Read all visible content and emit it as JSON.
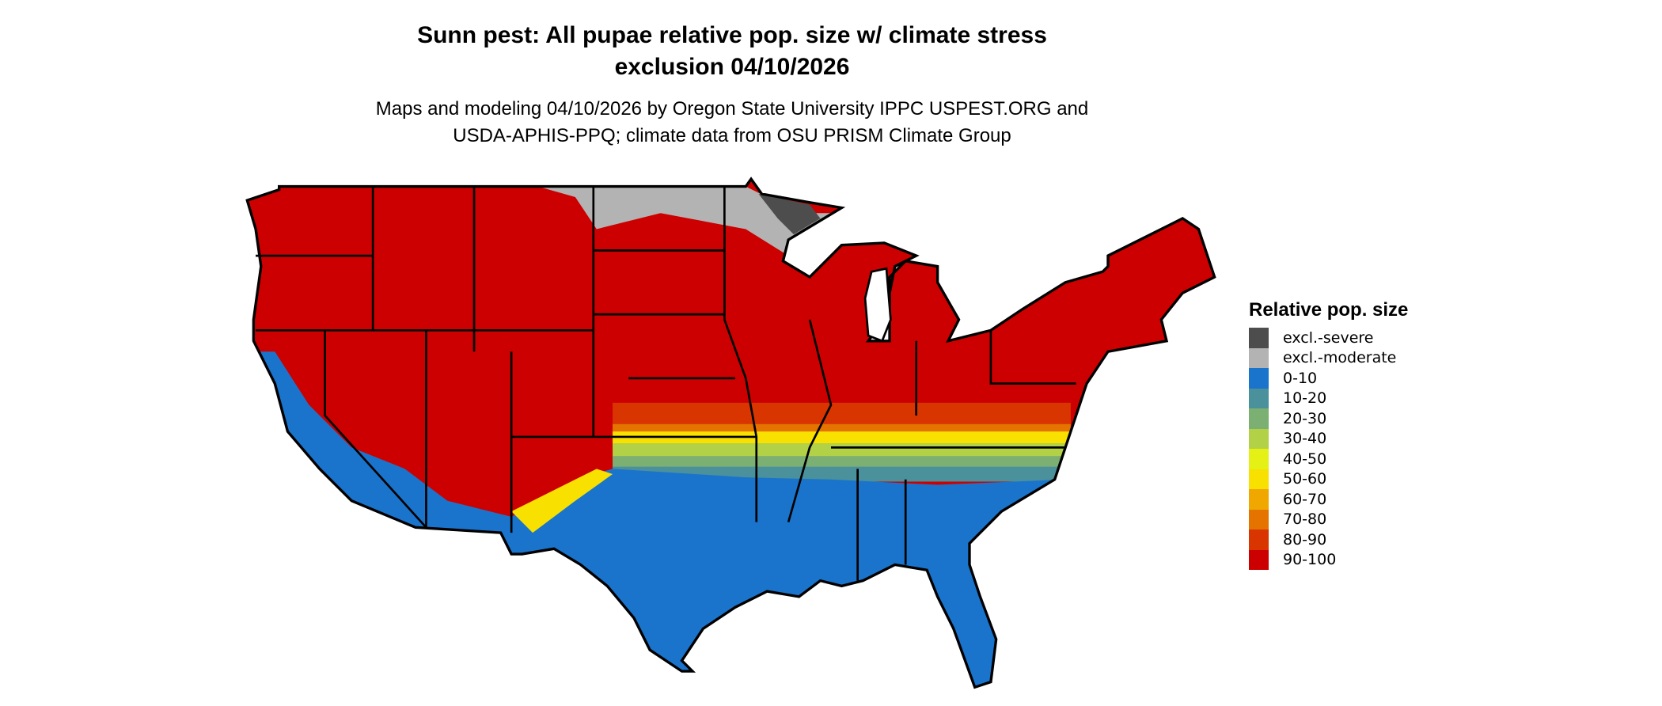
{
  "title": {
    "line1": "Sunn pest: All pupae relative pop. size w/ climate stress",
    "line2": "exclusion 04/10/2026"
  },
  "subtitle": {
    "line1": "Maps and modeling 04/10/2026 by Oregon State University IPPC USPEST.ORG and",
    "line2": "USDA-APHIS-PPQ; climate data from OSU PRISM Climate Group"
  },
  "legend": {
    "title": "Relative pop. size",
    "items": [
      {
        "label": "excl.-severe",
        "color": "#4d4d4d"
      },
      {
        "label": "excl.-moderate",
        "color": "#b3b3b3"
      },
      {
        "label": "0-10",
        "color": "#1a74cc"
      },
      {
        "label": "10-20",
        "color": "#4a919c"
      },
      {
        "label": "20-30",
        "color": "#7caf72"
      },
      {
        "label": "30-40",
        "color": "#b2d146"
      },
      {
        "label": "40-50",
        "color": "#e5f015"
      },
      {
        "label": "50-60",
        "color": "#f8e000"
      },
      {
        "label": "60-70",
        "color": "#f0a800"
      },
      {
        "label": "70-80",
        "color": "#e47300"
      },
      {
        "label": "80-90",
        "color": "#d83500"
      },
      {
        "label": "90-100",
        "color": "#cc0000"
      }
    ]
  },
  "map": {
    "region": "Contiguous United States",
    "border_color": "#000000"
  }
}
